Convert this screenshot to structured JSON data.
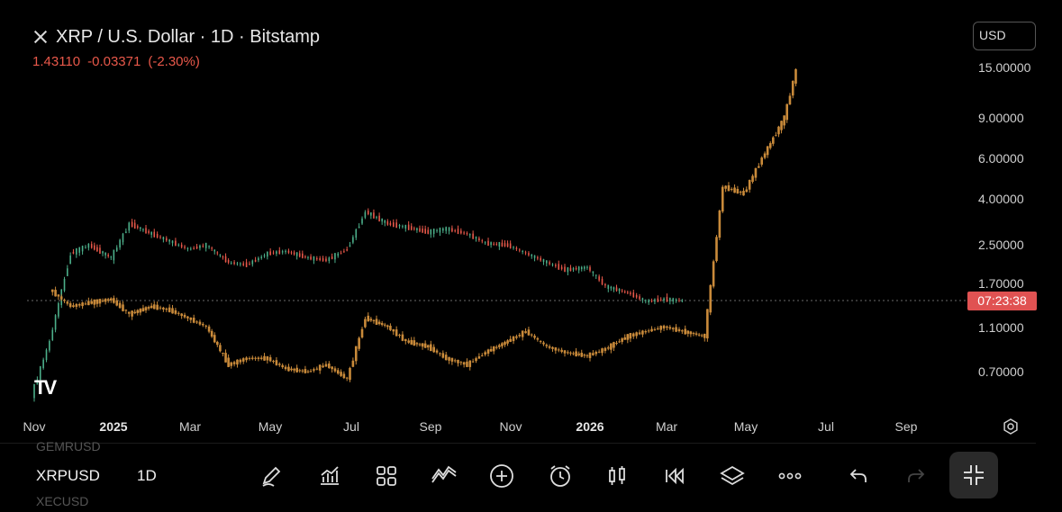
{
  "header": {
    "title": "XRP / U.S. Dollar · 1D · Bitstamp",
    "price": "1.43110",
    "change": "-0.03371",
    "change_pct": "(-2.30%)"
  },
  "currency_button": "USD",
  "countdown": "07:23:38",
  "colors": {
    "background": "#000000",
    "candle_down": "#e8584a",
    "candle_up": "#4caf8a",
    "overlay": "#c98a3a",
    "countdown_bg": "#e05252"
  },
  "bottom_bar": {
    "symbol_prev": "GEMRUSD",
    "symbol": "XRPUSD",
    "symbol_next": "XECUSD",
    "timeframe": "1D",
    "tools": [
      "pencil-icon",
      "chart-bars-icon",
      "grid-icon",
      "line-chart-icon",
      "plus-circle-icon",
      "alarm-icon",
      "candles-icon",
      "replay-icon",
      "layers-icon",
      "more-icon",
      "undo-icon",
      "redo-icon",
      "collapse-icon"
    ]
  },
  "chart_data": {
    "type": "line",
    "x_ticks": [
      "Nov",
      "2025",
      "Mar",
      "May",
      "Jul",
      "Sep",
      "Nov",
      "2026",
      "Mar",
      "May",
      "Jul",
      "Sep"
    ],
    "y_scale": "log",
    "y_ticks": [
      "15.00000",
      "9.00000",
      "6.00000",
      "4.00000",
      "2.50000",
      "1.70000",
      "1.10000",
      "0.70000"
    ],
    "last_price_line": 1.4311,
    "series": [
      {
        "x": [
          "2024-11-01",
          "2024-11-15",
          "2024-12-01",
          "2024-12-15",
          "2025-01-01",
          "2025-01-15",
          "2025-02-01",
          "2025-02-15",
          "2025-03-01",
          "2025-03-15",
          "2025-04-01",
          "2025-04-15",
          "2025-05-01",
          "2025-05-15",
          "2025-06-01",
          "2025-06-15",
          "2025-07-01",
          "2025-07-15",
          "2025-08-01",
          "2025-08-15",
          "2025-09-01",
          "2025-09-15",
          "2025-10-01",
          "2025-10-15",
          "2025-11-01",
          "2025-11-15",
          "2025-12-01",
          "2025-12-15",
          "2026-01-01",
          "2026-01-15",
          "2026-02-01",
          "2026-02-15",
          "2026-03-01",
          "2026-03-15"
        ],
        "values": [
          0.55,
          0.95,
          2.3,
          2.5,
          2.2,
          3.1,
          2.8,
          2.6,
          2.4,
          2.5,
          2.1,
          2.05,
          2.3,
          2.35,
          2.2,
          2.15,
          2.4,
          3.5,
          3.1,
          3.0,
          2.85,
          2.95,
          2.8,
          2.55,
          2.5,
          2.3,
          2.1,
          1.95,
          2.0,
          1.65,
          1.55,
          1.42,
          1.45,
          1.43
        ]
      },
      {
        "x": [
          "2024-11-15",
          "2024-12-01",
          "2024-12-15",
          "2025-01-01",
          "2025-01-15",
          "2025-02-01",
          "2025-02-15",
          "2025-03-01",
          "2025-03-15",
          "2025-04-01",
          "2025-04-15",
          "2025-05-01",
          "2025-05-15",
          "2025-06-01",
          "2025-06-15",
          "2025-07-01",
          "2025-07-15",
          "2025-08-01",
          "2025-08-15",
          "2025-09-01",
          "2025-09-15",
          "2025-10-01",
          "2025-10-15",
          "2025-11-01",
          "2025-11-15",
          "2025-12-01",
          "2025-12-15",
          "2026-01-01",
          "2026-01-15",
          "2026-02-01",
          "2026-02-15",
          "2026-03-01",
          "2026-03-15",
          "2026-04-01",
          "2026-04-15",
          "2026-05-01",
          "2026-05-15",
          "2026-06-01",
          "2026-06-10"
        ],
        "values": [
          1.6,
          1.35,
          1.4,
          1.45,
          1.25,
          1.35,
          1.3,
          1.2,
          1.1,
          0.75,
          0.8,
          0.8,
          0.72,
          0.7,
          0.75,
          0.65,
          1.2,
          1.1,
          0.95,
          0.9,
          0.8,
          0.75,
          0.85,
          0.95,
          1.05,
          0.9,
          0.85,
          0.82,
          0.88,
          1.0,
          1.05,
          1.1,
          1.05,
          1.0,
          4.5,
          4.2,
          6.0,
          9.0,
          14.5
        ]
      }
    ]
  }
}
